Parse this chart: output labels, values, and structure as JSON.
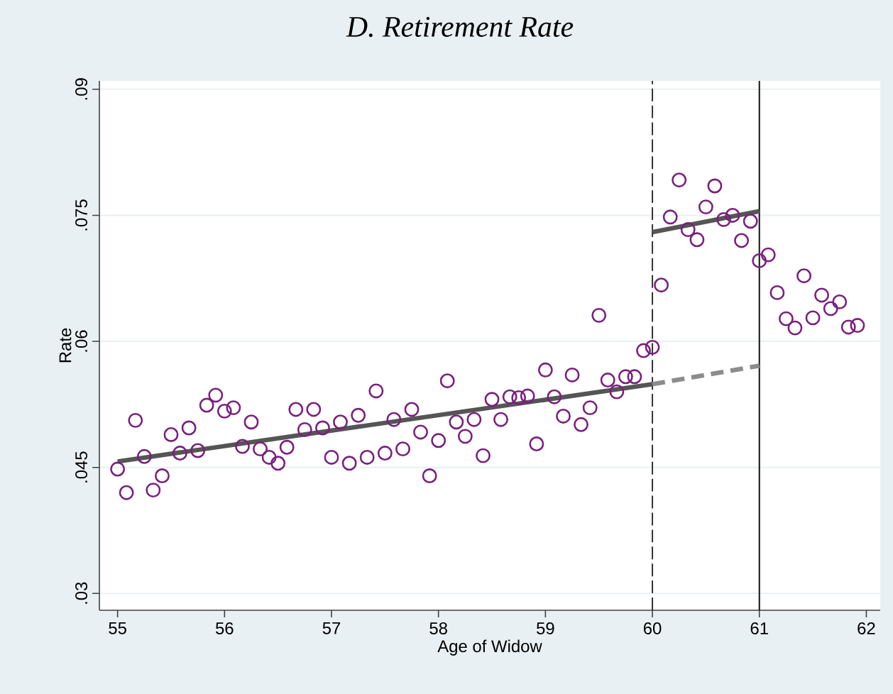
{
  "chart_data": {
    "type": "scatter",
    "title": "D. Retirement Rate",
    "xlabel": "Age of Widow",
    "ylabel": "Rate",
    "xlim": [
      54.83,
      62.13
    ],
    "ylim": [
      0.028,
      0.091
    ],
    "xticks": [
      55,
      56,
      57,
      58,
      59,
      60,
      61,
      62
    ],
    "yticks": [
      {
        "value": 0.03,
        "label": ".03"
      },
      {
        "value": 0.045,
        "label": ".045"
      },
      {
        "value": 0.06,
        "label": ".06"
      },
      {
        "value": 0.075,
        "label": ".075"
      },
      {
        "value": 0.09,
        "label": ".09"
      }
    ],
    "grid": "y",
    "ref_lines": [
      {
        "axis": "x",
        "value": 60,
        "color": "#333333",
        "line_style": "dashed"
      },
      {
        "axis": "x",
        "value": 61,
        "color": "#111111",
        "line_style": "solid"
      }
    ],
    "series": [
      {
        "marker": "circle",
        "color": "#7a1f7d",
        "x": [
          55,
          55.083,
          55.167,
          55.25,
          55.333,
          55.417,
          55.5,
          55.583,
          55.667,
          55.75,
          55.833,
          55.917,
          56,
          56.083,
          56.167,
          56.25,
          56.333,
          56.417,
          56.5,
          56.583,
          56.667,
          56.75,
          56.833,
          56.917,
          57,
          57.083,
          57.167,
          57.25,
          57.333,
          57.417,
          57.5,
          57.583,
          57.667,
          57.75,
          57.833,
          57.917,
          58,
          58.083,
          58.167,
          58.25,
          58.333,
          58.417,
          58.5,
          58.583,
          58.667,
          58.75,
          58.833,
          58.917,
          59,
          59.083,
          59.167,
          59.25,
          59.333,
          59.417,
          59.5,
          59.583,
          59.667,
          59.75,
          59.833,
          59.917,
          60,
          60.083,
          60.167,
          60.25,
          60.333,
          60.417,
          60.5,
          60.583,
          60.667,
          60.75,
          60.833,
          60.917,
          61,
          61.083,
          61.167,
          61.25,
          61.333,
          61.417,
          61.5,
          61.583,
          61.667,
          61.75,
          61.833,
          61.917
        ],
        "values": [
          0.0448,
          0.042,
          0.0506,
          0.0463,
          0.0423,
          0.044,
          0.0489,
          0.0467,
          0.0497,
          0.047,
          0.0524,
          0.0536,
          0.0517,
          0.0521,
          0.0475,
          0.0504,
          0.0472,
          0.0462,
          0.0455,
          0.0474,
          0.0519,
          0.0495,
          0.0519,
          0.0497,
          0.0462,
          0.0504,
          0.0455,
          0.0512,
          0.0462,
          0.0541,
          0.0467,
          0.0507,
          0.0472,
          0.0519,
          0.0492,
          0.044,
          0.0482,
          0.0553,
          0.0504,
          0.0487,
          0.0507,
          0.0464,
          0.0531,
          0.0507,
          0.0534,
          0.0533,
          0.0535,
          0.0478,
          0.0566,
          0.0534,
          0.0511,
          0.056,
          0.0501,
          0.0521,
          0.0631,
          0.0554,
          0.054,
          0.0558,
          0.0558,
          0.0589,
          0.0593,
          0.0667,
          0.0748,
          0.0792,
          0.0733,
          0.0721,
          0.076,
          0.0785,
          0.0745,
          0.075,
          0.072,
          0.0743,
          0.0696,
          0.0703,
          0.0658,
          0.0627,
          0.0616,
          0.0678,
          0.0628,
          0.0655,
          0.0639,
          0.0647,
          0.0617,
          0.0619
        ]
      },
      {
        "type": "line",
        "line_style": "solid",
        "color": "#555555",
        "x": [
          55,
          60
        ],
        "values": [
          0.0457,
          0.0549
        ]
      },
      {
        "type": "line",
        "line_style": "dashed",
        "color": "#8c8c8c",
        "x": [
          60,
          61
        ],
        "values": [
          0.0549,
          0.0571
        ]
      },
      {
        "type": "line",
        "line_style": "solid",
        "color": "#555555",
        "x": [
          60,
          61
        ],
        "values": [
          0.073,
          0.0755
        ]
      }
    ]
  }
}
